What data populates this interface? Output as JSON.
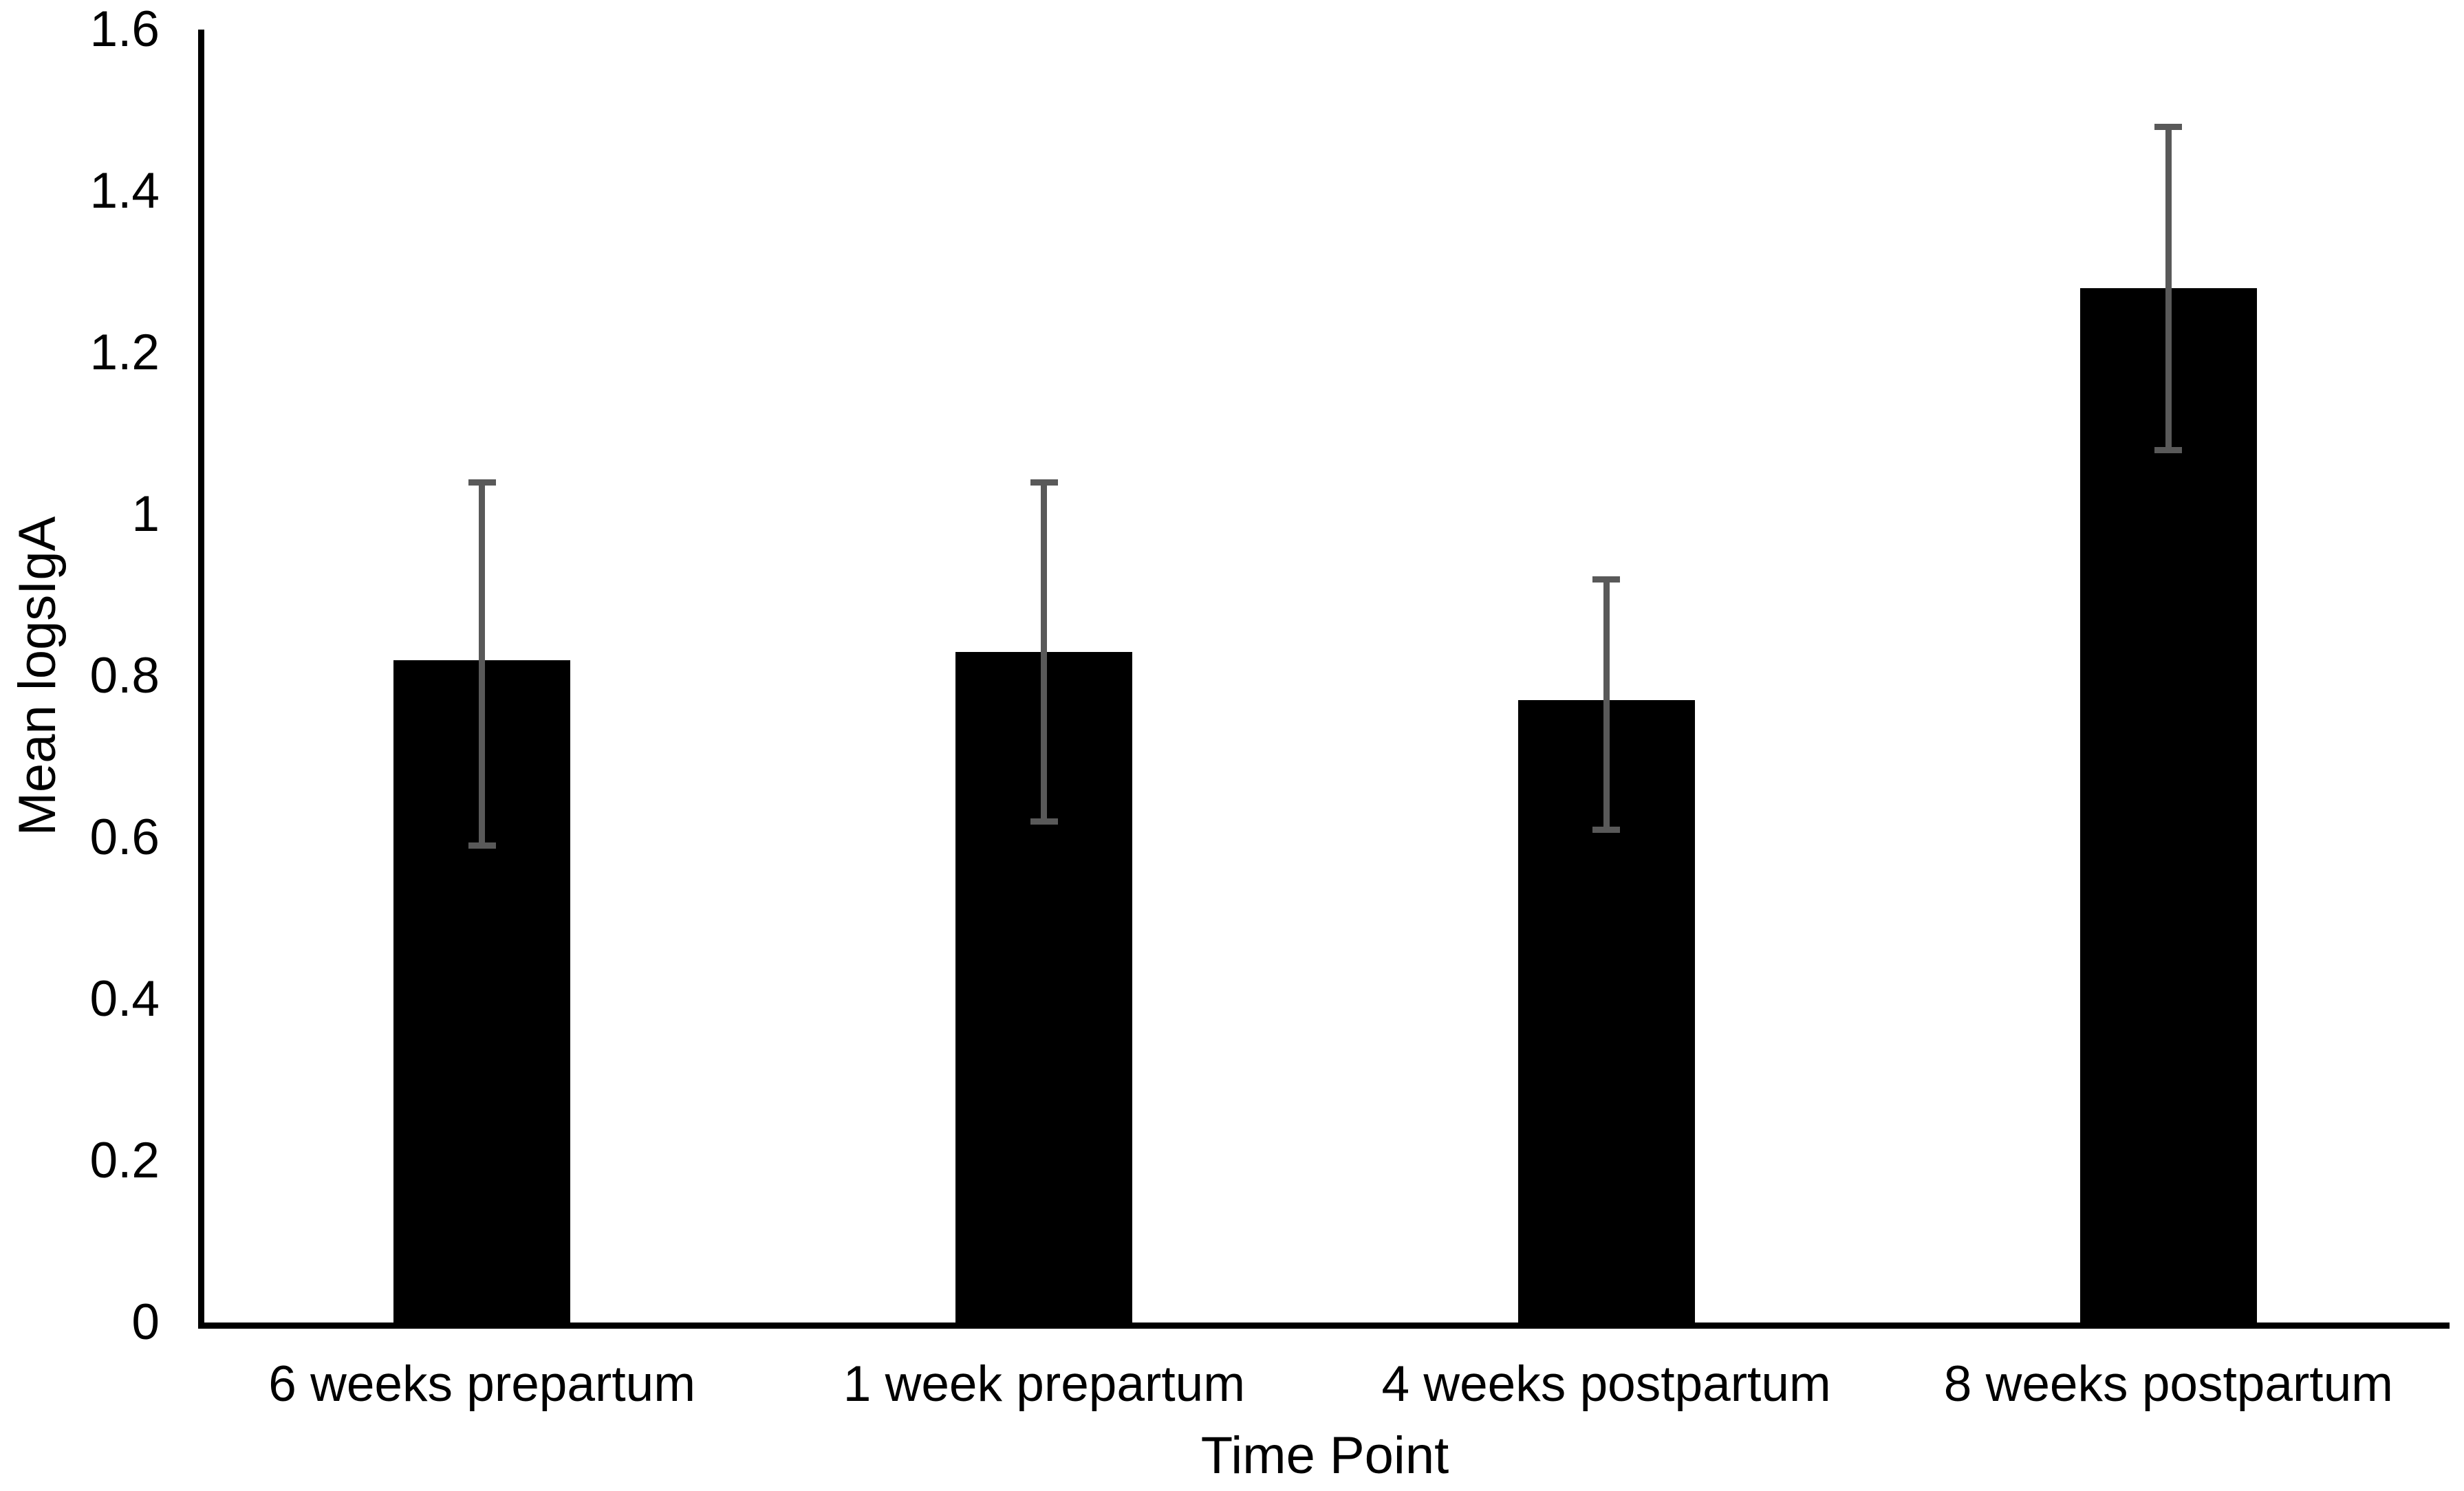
{
  "chart_data": {
    "type": "bar",
    "title": "",
    "xlabel": "Time Point",
    "ylabel": "Mean logsIgA",
    "categories": [
      "6 weeks prepartum",
      "1 week prepartum",
      "4 weeks postpartum",
      "8 weeks postpartum"
    ],
    "series": [
      {
        "name": "Mean logsIgA",
        "values": [
          0.82,
          0.83,
          0.77,
          1.28
        ]
      }
    ],
    "error_bars": {
      "upper": [
        1.04,
        1.04,
        0.92,
        1.48
      ],
      "lower": [
        0.59,
        0.62,
        0.61,
        1.08
      ]
    },
    "ylim": [
      0,
      1.6
    ],
    "ytick_interval": 0.2,
    "ytick_labels": [
      "0",
      "0.2",
      "0.4",
      "0.6",
      "0.8",
      "1",
      "1.2",
      "1.4",
      "1.6"
    ],
    "grid": "off",
    "legend": "none",
    "bar_color": "#000000",
    "error_bar_color": "#595959",
    "axis_color": "#000000",
    "background_color": "#ffffff"
  }
}
